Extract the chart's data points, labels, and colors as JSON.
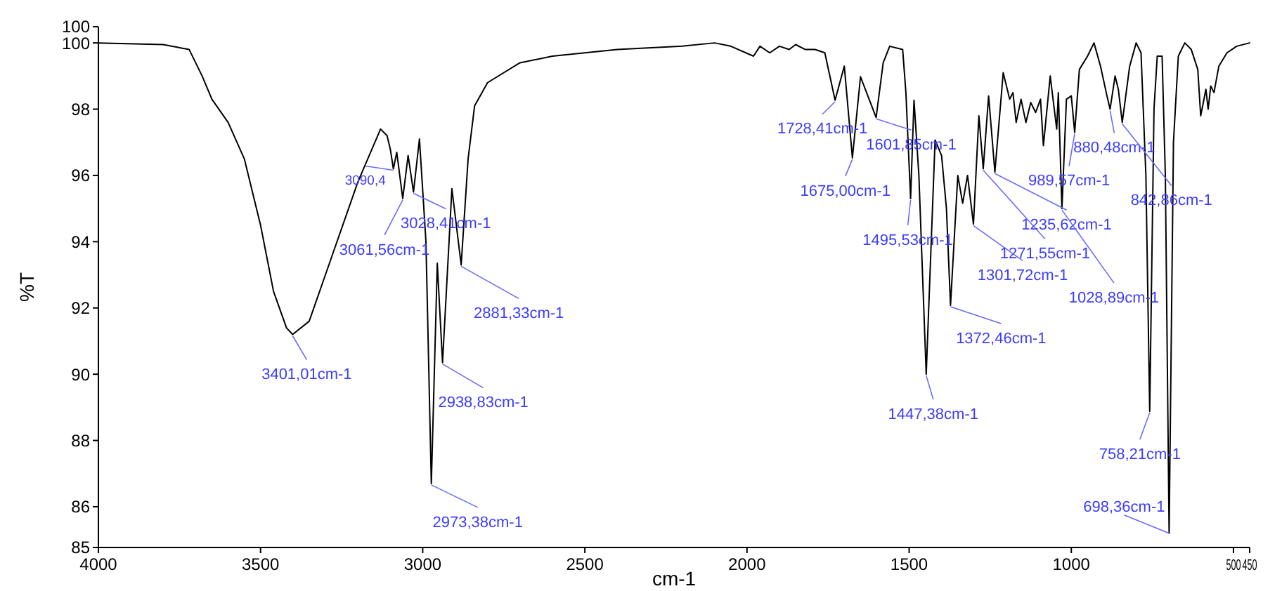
{
  "chart_data": {
    "type": "line",
    "xlabel": "cm-1",
    "ylabel": "%T",
    "xlim": [
      4000,
      450
    ],
    "ylim": [
      84.77,
      100.49
    ],
    "xticks": [
      4000,
      3500,
      3000,
      2500,
      2000,
      1500,
      1000,
      500,
      450
    ],
    "yticks": [
      {
        "value": 84.77,
        "label": "85"
      },
      86,
      88,
      90,
      92,
      94,
      96,
      98,
      100,
      {
        "value": 100.49,
        "label": "100"
      }
    ],
    "series": [
      {
        "color": "#000000",
        "x": [
          4000,
          3800,
          3720,
          3680,
          3650,
          3600,
          3550,
          3500,
          3460,
          3420,
          3401.01,
          3350,
          3300,
          3200,
          3130,
          3110,
          3100,
          3090.4,
          3080,
          3061.56,
          3045,
          3028.41,
          3010,
          2990,
          2973.38,
          2955,
          2938.83,
          2910,
          2881.33,
          2860,
          2840,
          2800,
          2700,
          2600,
          2400,
          2200,
          2100,
          2050,
          1980,
          1960,
          1930,
          1900,
          1870,
          1850,
          1820,
          1790,
          1760,
          1728.41,
          1700,
          1675,
          1650,
          1601.85,
          1580,
          1560,
          1520,
          1510,
          1495.53,
          1485,
          1470,
          1447.38,
          1420,
          1400,
          1385,
          1372.46,
          1350,
          1335,
          1320,
          1301.72,
          1285,
          1271.55,
          1255,
          1235.62,
          1210,
          1190,
          1180,
          1170,
          1155,
          1140,
          1125,
          1110,
          1095,
          1086,
          1065,
          1045,
          1040,
          1028.89,
          1015,
          1000,
          989.57,
          975,
          950,
          930,
          910,
          890,
          880.48,
          865,
          855,
          842.86,
          820,
          800,
          785,
          770,
          758.21,
          745,
          735,
          720,
          710,
          698.36,
          685,
          670,
          650,
          630,
          610,
          601,
          585,
          578,
          570,
          560,
          545,
          520,
          490,
          450
        ],
        "values": [
          100.0,
          99.95,
          99.8,
          99.0,
          98.3,
          97.6,
          96.5,
          94.5,
          92.5,
          91.4,
          91.2,
          91.6,
          93.0,
          95.8,
          97.4,
          97.2,
          96.8,
          96.2,
          96.7,
          95.3,
          96.6,
          95.5,
          97.1,
          94.0,
          86.7,
          93.35,
          90.35,
          95.6,
          93.3,
          96.5,
          98.1,
          98.8,
          99.4,
          99.6,
          99.8,
          99.9,
          100.0,
          99.9,
          99.6,
          99.9,
          99.7,
          99.9,
          99.8,
          99.95,
          99.8,
          99.8,
          99.7,
          98.27,
          99.3,
          96.53,
          98.98,
          97.75,
          99.4,
          99.9,
          99.8,
          98.5,
          95.3,
          98.27,
          96.0,
          90.0,
          97.07,
          96.6,
          95.0,
          92.08,
          96.0,
          95.16,
          96.0,
          94.53,
          97.8,
          96.2,
          98.4,
          96.1,
          99.1,
          98.3,
          98.5,
          97.6,
          98.3,
          97.6,
          98.2,
          97.9,
          98.3,
          96.9,
          99.0,
          97.4,
          98.5,
          95.0,
          98.3,
          98.4,
          97.3,
          99.2,
          99.6,
          100.0,
          99.3,
          98.4,
          98.0,
          99.0,
          98.6,
          97.6,
          99.3,
          100.0,
          99.7,
          96.0,
          88.88,
          98.0,
          99.6,
          99.6,
          96.0,
          85.2,
          97.0,
          99.6,
          100.0,
          99.8,
          99.2,
          97.8,
          98.6,
          98.0,
          98.7,
          98.5,
          99.3,
          99.7,
          99.9,
          100.0
        ]
      }
    ],
    "annotations": [
      {
        "text": "3401,01cm-1",
        "x": 3401.01,
        "y": 91.2
      },
      {
        "text": "2973,38cm-1",
        "x": 2973.38,
        "y": 86.7
      },
      {
        "text": "2938,83cm-1",
        "x": 2938.83,
        "y": 90.35
      },
      {
        "text": "2881,33cm-1",
        "x": 2881.33,
        "y": 93.3
      },
      {
        "text": "3061,56cm-1",
        "x": 3061.56,
        "y": 95.3
      },
      {
        "text": "3028,41cm-1",
        "x": 3028.41,
        "y": 95.5
      },
      {
        "text": "3090,4",
        "x": 3090.4,
        "y": 96.2
      },
      {
        "text": "1728,41cm-1",
        "x": 1728.41,
        "y": 98.27
      },
      {
        "text": "1675,00cm-1",
        "x": 1675,
        "y": 96.53
      },
      {
        "text": "1601,85cm-1",
        "x": 1601.85,
        "y": 97.75
      },
      {
        "text": "1495,53cm-1",
        "x": 1495.53,
        "y": 95.3
      },
      {
        "text": "1447,38cm-1",
        "x": 1447.38,
        "y": 90.0
      },
      {
        "text": "1372,46cm-1",
        "x": 1372.46,
        "y": 92.08
      },
      {
        "text": "1301,72cm-1",
        "x": 1301.72,
        "y": 94.53
      },
      {
        "text": "1271,55cm-1",
        "x": 1271.55,
        "y": 96.2
      },
      {
        "text": "1235,62cm-1",
        "x": 1235.62,
        "y": 96.1
      },
      {
        "text": "1028,89cm-1",
        "x": 1028.89,
        "y": 95.0
      },
      {
        "text": "989,57cm-1",
        "x": 989.57,
        "y": 97.3
      },
      {
        "text": "880,48cm-1",
        "x": 880.48,
        "y": 98.0
      },
      {
        "text": "842,86cm-1",
        "x": 842.86,
        "y": 97.6
      },
      {
        "text": "758,21cm-1",
        "x": 758.21,
        "y": 88.88
      },
      {
        "text": "698,36cm-1",
        "x": 698.36,
        "y": 85.2
      }
    ]
  }
}
